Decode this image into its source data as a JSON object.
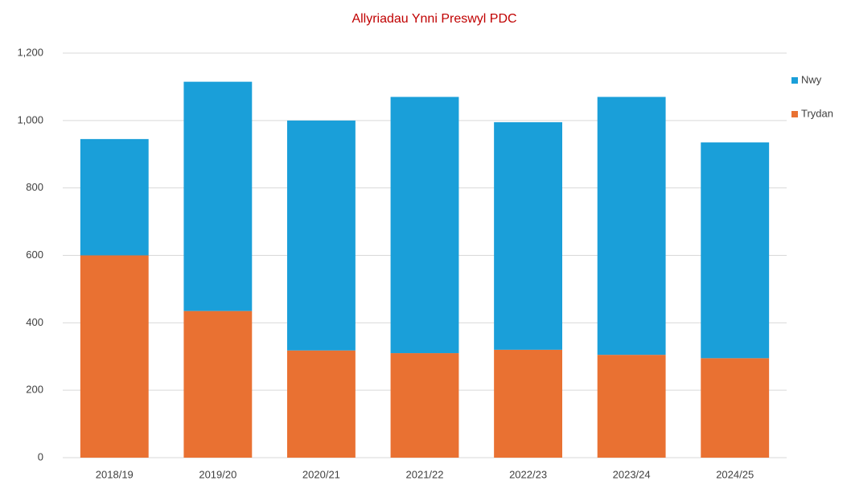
{
  "chart_data": {
    "type": "stacked_bar",
    "title": "Allyriadau Ynni Preswyl PDC",
    "categories": [
      "2018/19",
      "2019/20",
      "2020/21",
      "2021/22",
      "2022/23",
      "2023/24",
      "2024/25"
    ],
    "series": [
      {
        "name": "Nwy",
        "color": "#1a9fd9",
        "values": [
          345,
          680,
          682,
          760,
          675,
          765,
          640
        ]
      },
      {
        "name": "Trydan",
        "color": "#e97132",
        "values": [
          600,
          435,
          318,
          310,
          320,
          305,
          295
        ]
      }
    ],
    "ylim": [
      0,
      1200
    ],
    "yticks": [
      0,
      200,
      400,
      600,
      800,
      {
        "value": 1000,
        "label": "1,000"
      },
      {
        "value": 1200,
        "label": "1,200"
      }
    ],
    "grid": true,
    "legend": "right"
  }
}
